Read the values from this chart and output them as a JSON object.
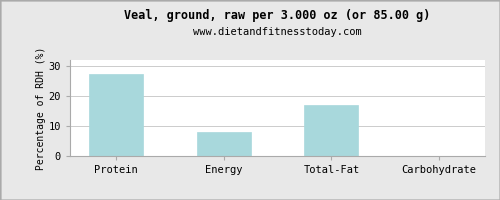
{
  "title": "Veal, ground, raw per 3.000 oz (or 85.00 g)",
  "subtitle": "www.dietandfitnesstoday.com",
  "categories": [
    "Protein",
    "Energy",
    "Total-Fat",
    "Carbohydrate"
  ],
  "values": [
    27.5,
    8.0,
    17.0,
    0.15
  ],
  "bar_color": "#A8D8DC",
  "bar_edge_color": "#A8D8DC",
  "ylabel": "Percentage of RDH (%)",
  "ylim": [
    0,
    32
  ],
  "yticks": [
    0,
    10,
    20,
    30
  ],
  "background_color": "#e8e8e8",
  "plot_bg_color": "#ffffff",
  "title_fontsize": 8.5,
  "subtitle_fontsize": 7.5,
  "ylabel_fontsize": 7,
  "tick_fontsize": 7.5,
  "grid_color": "#cccccc",
  "border_color": "#aaaaaa"
}
